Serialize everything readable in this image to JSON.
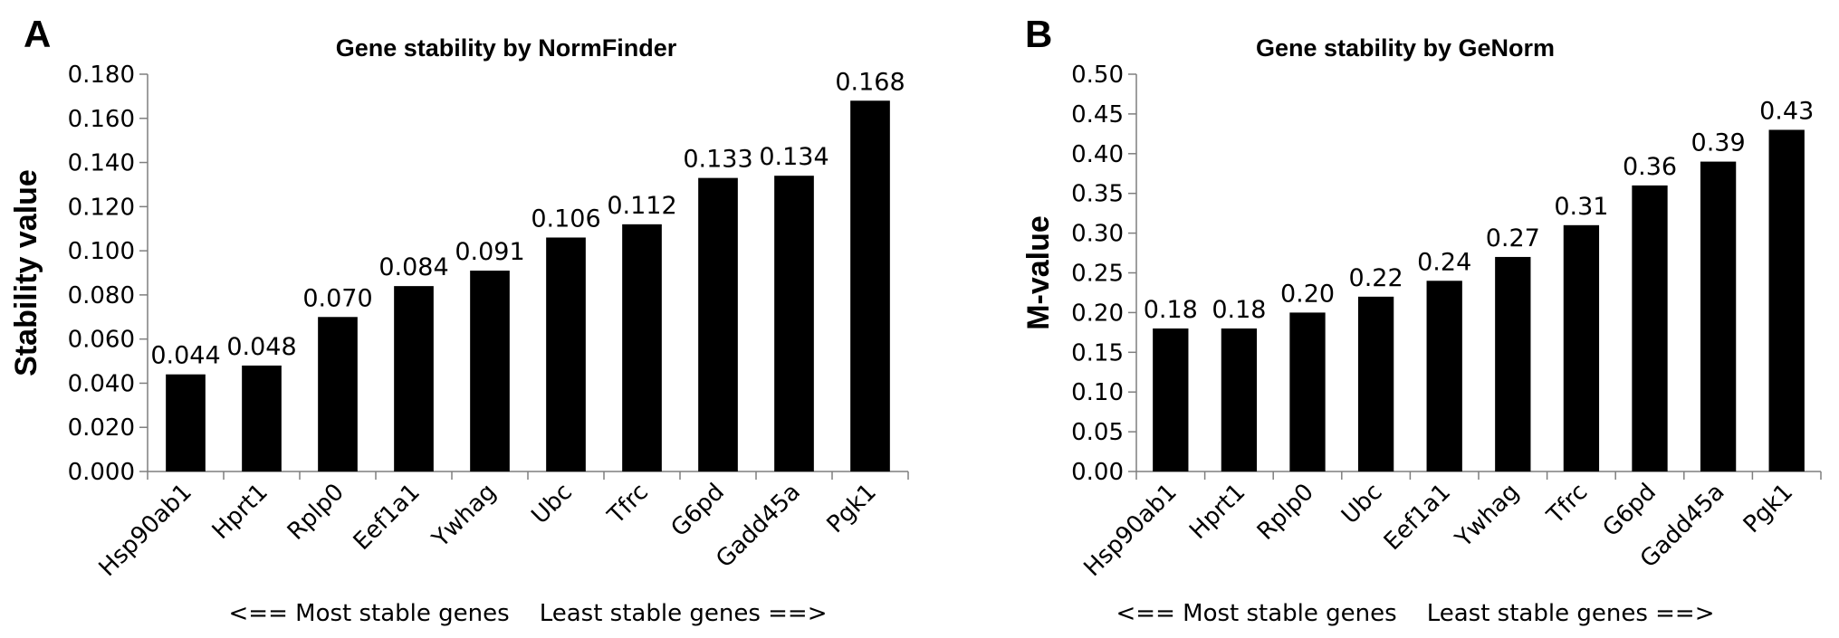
{
  "chart_data": [
    {
      "panel_label": "A",
      "type": "bar",
      "title": "Gene stability by NormFinder",
      "ylabel": "Stability value",
      "xlabel": "<== Most stable genes    Least stable genes ==>",
      "ylim": [
        0,
        0.18
      ],
      "y_ticks": [
        "0.000",
        "0.020",
        "0.040",
        "0.060",
        "0.080",
        "0.100",
        "0.120",
        "0.140",
        "0.160",
        "0.180"
      ],
      "categories": [
        "Hsp90ab1",
        "Hprt1",
        "Rplp0",
        "Eef1a1",
        "Ywhag",
        "Ubc",
        "Tfrc",
        "G6pd",
        "Gadd45a",
        "Pgk1"
      ],
      "values": [
        0.044,
        0.048,
        0.07,
        0.084,
        0.091,
        0.106,
        0.112,
        0.133,
        0.134,
        0.168
      ],
      "data_labels": [
        "0.044",
        "0.048",
        "0.070",
        "0.084",
        "0.091",
        "0.106",
        "0.112",
        "0.133",
        "0.134",
        "0.168"
      ],
      "bar_color": "#000000",
      "grid": false
    },
    {
      "panel_label": "B",
      "type": "bar",
      "title": "Gene stability by GeNorm",
      "ylabel": "M-value",
      "xlabel": "<== Most stable genes    Least stable genes ==>",
      "ylim": [
        0,
        0.5
      ],
      "y_ticks": [
        "0.00",
        "0.05",
        "0.10",
        "0.15",
        "0.20",
        "0.25",
        "0.30",
        "0.35",
        "0.40",
        "0.45",
        "0.50"
      ],
      "categories": [
        "Hsp90ab1",
        "Hprt1",
        "Rplp0",
        "Ubc",
        "Eef1a1",
        "Ywhag",
        "Tfrc",
        "G6pd",
        "Gadd45a",
        "Pgk1"
      ],
      "values": [
        0.18,
        0.18,
        0.2,
        0.22,
        0.24,
        0.27,
        0.31,
        0.36,
        0.39,
        0.43
      ],
      "data_labels": [
        "0.18",
        "0.18",
        "0.20",
        "0.22",
        "0.24",
        "0.27",
        "0.31",
        "0.36",
        "0.39",
        "0.43"
      ],
      "bar_color": "#000000",
      "grid": false
    }
  ]
}
